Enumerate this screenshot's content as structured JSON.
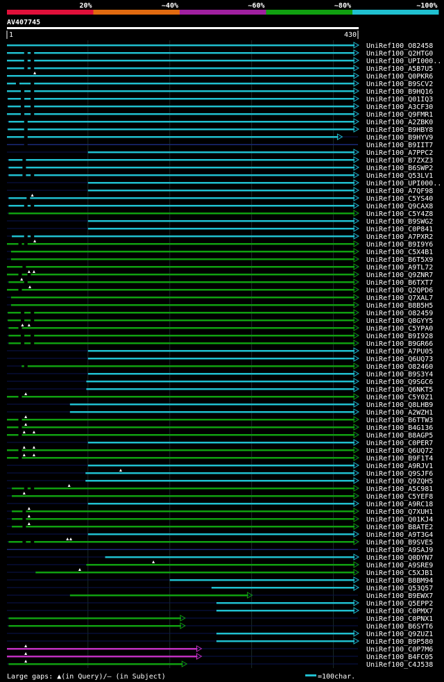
{
  "legend_scale": {
    "labels": [
      "20%",
      "~40%",
      "~60%",
      "~80%",
      "~100%"
    ],
    "colors": [
      "#e0103a",
      "#e06a10",
      "#a020a0",
      "#10a010",
      "#20c0d0"
    ]
  },
  "colors": {
    "cyan": "#20c0d0",
    "green": "#10a010",
    "magenta": "#c030c0",
    "white": "#ffffff",
    "navy": "#0a1450",
    "grid": "#1a2a2a"
  },
  "footer": {
    "gaps_text": "Large gaps: ▲(in Query)/— (in Subject)",
    "scale_text": "=100char."
  },
  "chart_data": {
    "type": "alignment-map",
    "title": "AV407745",
    "query_range": [
      1,
      430
    ],
    "axis_start_label": "1",
    "axis_end_label": "430",
    "hits": [
      {
        "name": "UniRef100_O82458",
        "start": 1,
        "end": 430,
        "color": "cyan",
        "gaps": []
      },
      {
        "name": "UniRef100_Q2HTG0",
        "start": 1,
        "end": 430,
        "color": "cyan",
        "gaps": [
          22,
          30
        ]
      },
      {
        "name": "UniRef100_UPI000..",
        "start": 1,
        "end": 430,
        "color": "cyan",
        "gaps": [
          22,
          30
        ]
      },
      {
        "name": "UniRef100_A5B7U5",
        "start": 1,
        "end": 430,
        "color": "cyan",
        "gaps": [
          22,
          30
        ]
      },
      {
        "name": "UniRef100_Q0PKR6",
        "start": 1,
        "end": 430,
        "color": "cyan",
        "gaps": [],
        "ins": [
          35
        ]
      },
      {
        "name": "UniRef100_B9SCV2",
        "start": 1,
        "end": 430,
        "color": "cyan",
        "gaps": [
          12,
          30
        ]
      },
      {
        "name": "UniRef100_B9HQ16",
        "start": 1,
        "end": 430,
        "color": "cyan",
        "gaps": [
          18,
          30
        ]
      },
      {
        "name": "UniRef100_Q01IQ3",
        "start": 2,
        "end": 430,
        "color": "cyan",
        "gaps": [
          18,
          30
        ]
      },
      {
        "name": "UniRef100_A3CF30",
        "start": 2,
        "end": 430,
        "color": "cyan",
        "gaps": [
          18,
          30
        ]
      },
      {
        "name": "UniRef100_Q9FMR1",
        "start": 1,
        "end": 430,
        "color": "cyan",
        "gaps": [
          18,
          30
        ]
      },
      {
        "name": "UniRef100_A2ZBK0",
        "start": 3,
        "end": 430,
        "color": "cyan",
        "gaps": [
          22
        ]
      },
      {
        "name": "UniRef100_B9HBY8",
        "start": 2,
        "end": 430,
        "color": "cyan",
        "gaps": [
          22
        ]
      },
      {
        "name": "UniRef100_B9HYV9",
        "start": 1,
        "end": 410,
        "color": "cyan",
        "gaps": [
          22
        ]
      },
      {
        "name": "UniRef100_B9IIT7",
        "start": 1,
        "end": 430,
        "color": "navy",
        "gaps": [
          22
        ]
      },
      {
        "name": "UniRef100_A7PPC2",
        "start": 100,
        "end": 430,
        "color": "cyan",
        "gaps": []
      },
      {
        "name": "UniRef100_B7ZXZ3",
        "start": 3,
        "end": 430,
        "color": "cyan",
        "gaps": [
          20
        ]
      },
      {
        "name": "UniRef100_B6SWP2",
        "start": 3,
        "end": 430,
        "color": "cyan",
        "gaps": [
          20
        ]
      },
      {
        "name": "UniRef100_Q53LV1",
        "start": 3,
        "end": 430,
        "color": "cyan",
        "gaps": [
          20,
          30
        ]
      },
      {
        "name": "UniRef100_UPI000..",
        "start": 100,
        "end": 430,
        "color": "cyan",
        "gaps": []
      },
      {
        "name": "UniRef100_A7QF98",
        "start": 100,
        "end": 430,
        "color": "cyan",
        "gaps": []
      },
      {
        "name": "UniRef100_C5YS40",
        "start": 3,
        "end": 430,
        "color": "cyan",
        "gaps": [
          25
        ],
        "ins": [
          32
        ]
      },
      {
        "name": "UniRef100_Q9CAX8",
        "start": 3,
        "end": 430,
        "color": "cyan",
        "gaps": [
          22,
          30
        ]
      },
      {
        "name": "UniRef100_C5Y4Z8",
        "start": 3,
        "end": 430,
        "color": "green",
        "gaps": []
      },
      {
        "name": "UniRef100_B9SWG2",
        "start": 100,
        "end": 430,
        "color": "cyan",
        "gaps": []
      },
      {
        "name": "UniRef100_C0P841",
        "start": 100,
        "end": 430,
        "color": "cyan",
        "gaps": []
      },
      {
        "name": "UniRef100_A7PXR2",
        "start": 7,
        "end": 430,
        "color": "cyan",
        "gaps": [
          22,
          30
        ]
      },
      {
        "name": "UniRef100_B9I9Y6",
        "start": 1,
        "end": 430,
        "color": "green",
        "gaps": [
          15,
          22
        ],
        "ins": [
          35
        ]
      },
      {
        "name": "UniRef100_C5X4B1",
        "start": 6,
        "end": 430,
        "color": "green",
        "gaps": []
      },
      {
        "name": "UniRef100_B6T5X9",
        "start": 6,
        "end": 430,
        "color": "green",
        "gaps": []
      },
      {
        "name": "UniRef100_A9TL72",
        "start": 1,
        "end": 430,
        "color": "green",
        "gaps": [
          20
        ]
      },
      {
        "name": "UniRef100_Q9ZNR7",
        "start": 1,
        "end": 430,
        "color": "green",
        "gaps": [
          15,
          26
        ],
        "ins": [
          28,
          34
        ]
      },
      {
        "name": "UniRef100_B6TXT7",
        "start": 3,
        "end": 430,
        "color": "green",
        "gaps": [
          22
        ],
        "ins": [
          19
        ]
      },
      {
        "name": "UniRef100_Q2QPD6",
        "start": 1,
        "end": 430,
        "color": "green",
        "gaps": [
          15
        ],
        "ins": [
          29
        ]
      },
      {
        "name": "UniRef100_Q7XAL7",
        "start": 6,
        "end": 430,
        "color": "green",
        "gaps": []
      },
      {
        "name": "UniRef100_B8B5H5",
        "start": 6,
        "end": 430,
        "color": "green",
        "gaps": []
      },
      {
        "name": "UniRef100_O82459",
        "start": 2,
        "end": 430,
        "color": "green",
        "gaps": [
          18,
          30
        ]
      },
      {
        "name": "UniRef100_Q8GYY5",
        "start": 2,
        "end": 430,
        "color": "green",
        "gaps": [
          18,
          30
        ]
      },
      {
        "name": "UniRef100_C5YPA0",
        "start": 3,
        "end": 430,
        "color": "green",
        "gaps": [
          15
        ],
        "ins": [
          20,
          28
        ]
      },
      {
        "name": "UniRef100_B9I928",
        "start": 3,
        "end": 430,
        "color": "green",
        "gaps": [
          18,
          30
        ]
      },
      {
        "name": "UniRef100_B9GR66",
        "start": 3,
        "end": 430,
        "color": "green",
        "gaps": [
          18,
          30
        ]
      },
      {
        "name": "UniRef100_A7PU05",
        "start": 100,
        "end": 430,
        "color": "cyan",
        "gaps": []
      },
      {
        "name": "UniRef100_Q6UQ73",
        "start": 100,
        "end": 430,
        "color": "cyan",
        "gaps": []
      },
      {
        "name": "UniRef100_O82460",
        "start": 19,
        "end": 430,
        "color": "green",
        "gaps": [
          22
        ]
      },
      {
        "name": "UniRef100_B9S3Y4",
        "start": 100,
        "end": 430,
        "color": "cyan",
        "gaps": []
      },
      {
        "name": "UniRef100_Q9SGC6",
        "start": 98,
        "end": 430,
        "color": "cyan",
        "gaps": []
      },
      {
        "name": "UniRef100_Q6NKT5",
        "start": 98,
        "end": 430,
        "color": "cyan",
        "gaps": []
      },
      {
        "name": "UniRef100_C5Y0Z1",
        "start": 1,
        "end": 430,
        "color": "green",
        "gaps": [
          15
        ],
        "ins": [
          24
        ]
      },
      {
        "name": "UniRef100_Q8LHB9",
        "start": 78,
        "end": 430,
        "color": "cyan",
        "gaps": []
      },
      {
        "name": "UniRef100_A2WZH1",
        "start": 78,
        "end": 430,
        "color": "cyan",
        "gaps": []
      },
      {
        "name": "UniRef100_B6TTW3",
        "start": 1,
        "end": 430,
        "color": "green",
        "gaps": [
          15
        ],
        "ins": [
          24
        ]
      },
      {
        "name": "UniRef100_B4G136",
        "start": 1,
        "end": 430,
        "color": "green",
        "gaps": [
          15
        ],
        "ins": [
          24
        ]
      },
      {
        "name": "UniRef100_B8AGP5",
        "start": 1,
        "end": 430,
        "color": "green",
        "gaps": [
          15
        ],
        "ins": [
          22,
          34
        ]
      },
      {
        "name": "UniRef100_C0PER7",
        "start": 100,
        "end": 430,
        "color": "cyan",
        "gaps": []
      },
      {
        "name": "UniRef100_Q6UQ72",
        "start": 1,
        "end": 430,
        "color": "green",
        "gaps": [
          15
        ],
        "ins": [
          22,
          34
        ]
      },
      {
        "name": "UniRef100_B9F1T4",
        "start": 1,
        "end": 430,
        "color": "green",
        "gaps": [
          15
        ],
        "ins": [
          22,
          34
        ]
      },
      {
        "name": "UniRef100_A9RJV1",
        "start": 100,
        "end": 430,
        "color": "cyan",
        "gaps": []
      },
      {
        "name": "UniRef100_Q9SJF6",
        "start": 97,
        "end": 430,
        "color": "cyan",
        "gaps": [],
        "ins": [
          140
        ]
      },
      {
        "name": "UniRef100_Q9ZQH5",
        "start": 97,
        "end": 430,
        "color": "cyan",
        "gaps": []
      },
      {
        "name": "UniRef100_A5C981",
        "start": 7,
        "end": 430,
        "color": "green",
        "gaps": [
          22,
          30
        ],
        "ins": [
          77
        ]
      },
      {
        "name": "UniRef100_C5YEF8",
        "start": 7,
        "end": 430,
        "color": "green",
        "gaps": [],
        "ins": [
          22
        ]
      },
      {
        "name": "UniRef100_A9RC18",
        "start": 100,
        "end": 430,
        "color": "cyan",
        "gaps": []
      },
      {
        "name": "UniRef100_Q7XUH1",
        "start": 7,
        "end": 430,
        "color": "green",
        "gaps": [
          20
        ],
        "ins": [
          28
        ]
      },
      {
        "name": "UniRef100_Q01KJ4",
        "start": 7,
        "end": 430,
        "color": "green",
        "gaps": [
          20
        ],
        "ins": [
          28
        ]
      },
      {
        "name": "UniRef100_B8ATE2",
        "start": 7,
        "end": 430,
        "color": "green",
        "gaps": [
          20
        ],
        "ins": [
          28
        ]
      },
      {
        "name": "UniRef100_A9T3G4",
        "start": 100,
        "end": 430,
        "color": "cyan",
        "gaps": []
      },
      {
        "name": "UniRef100_B9SVE5",
        "start": 3,
        "end": 430,
        "color": "green",
        "gaps": [
          20,
          30
        ],
        "ins": [
          75,
          79
        ]
      },
      {
        "name": "UniRef100_A9SAJ9",
        "start": 1,
        "end": 430,
        "color": "navy",
        "gaps": []
      },
      {
        "name": "UniRef100_Q0DYN7",
        "start": 121,
        "end": 430,
        "color": "cyan",
        "gaps": []
      },
      {
        "name": "UniRef100_A9SRE9",
        "start": 98,
        "end": 430,
        "color": "green",
        "gaps": [],
        "ins": [
          180
        ]
      },
      {
        "name": "UniRef100_C5XJB1",
        "start": 36,
        "end": 430,
        "color": "green",
        "gaps": [],
        "ins": [
          90
        ]
      },
      {
        "name": "UniRef100_B8BM94",
        "start": 200,
        "end": 430,
        "color": "cyan",
        "gaps": []
      },
      {
        "name": "UniRef100_Q53Q57",
        "start": 251,
        "end": 430,
        "color": "cyan",
        "gaps": []
      },
      {
        "name": "UniRef100_B9EWX7",
        "start": 78,
        "end": 300,
        "color": "green",
        "gaps": []
      },
      {
        "name": "UniRef100_Q5EPP2",
        "start": 257,
        "end": 430,
        "color": "cyan",
        "gaps": []
      },
      {
        "name": "UniRef100_C0PMX7",
        "start": 257,
        "end": 430,
        "color": "cyan",
        "gaps": []
      },
      {
        "name": "UniRef100_C0PNX1",
        "start": 3,
        "end": 218,
        "color": "green",
        "gaps": []
      },
      {
        "name": "UniRef100_B6SYT6",
        "start": 3,
        "end": 218,
        "color": "green",
        "gaps": []
      },
      {
        "name": "UniRef100_Q9ZUZ1",
        "start": 257,
        "end": 430,
        "color": "cyan",
        "gaps": []
      },
      {
        "name": "UniRef100_B9P580",
        "start": 257,
        "end": 430,
        "color": "cyan",
        "gaps": []
      },
      {
        "name": "UniRef100_C0P7M6",
        "start": 1,
        "end": 238,
        "color": "magenta",
        "gaps": [],
        "ins": [
          24
        ]
      },
      {
        "name": "UniRef100_B4FC05",
        "start": 1,
        "end": 238,
        "color": "magenta",
        "gaps": [],
        "ins": [
          24
        ]
      },
      {
        "name": "UniRef100_C4J538",
        "start": 3,
        "end": 220,
        "color": "green",
        "gaps": [],
        "ins": [
          24
        ]
      }
    ]
  }
}
